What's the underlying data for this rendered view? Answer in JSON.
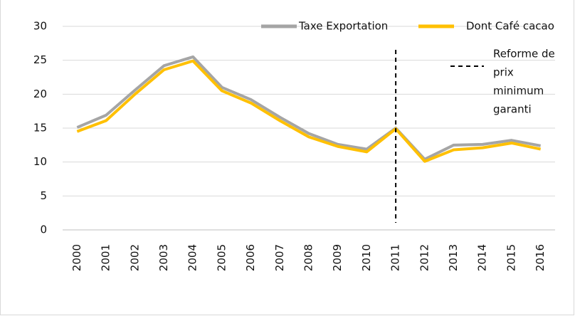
{
  "chart_data": {
    "type": "line",
    "categories": [
      "2000",
      "2001",
      "2002",
      "2003",
      "2004",
      "2005",
      "2006",
      "2007",
      "2008",
      "2009",
      "2010",
      "2011",
      "2012",
      "2013",
      "2014",
      "2015",
      "2016"
    ],
    "series": [
      {
        "name": "Taxe Exportation",
        "color": "#a5a5a5",
        "values": [
          15.1,
          16.9,
          20.6,
          24.2,
          25.5,
          21.0,
          19.2,
          16.6,
          14.2,
          12.6,
          11.9,
          15.0,
          10.4,
          12.5,
          12.6,
          13.2,
          12.4
        ]
      },
      {
        "name": "Dont Café cacao",
        "color": "#ffc000",
        "values": [
          14.5,
          16.1,
          20.0,
          23.6,
          24.9,
          20.5,
          18.7,
          16.1,
          13.7,
          12.3,
          11.5,
          14.9,
          10.1,
          11.8,
          12.1,
          12.8,
          11.9
        ]
      }
    ],
    "ylim": [
      0,
      30
    ],
    "yticks": [
      0,
      5,
      10,
      15,
      20,
      25,
      30
    ],
    "grid": true,
    "legend": "top",
    "annotation": {
      "x": "2011",
      "style": "dashed",
      "text": [
        "Reforme de",
        "prix",
        "minimum",
        "garanti"
      ]
    }
  }
}
